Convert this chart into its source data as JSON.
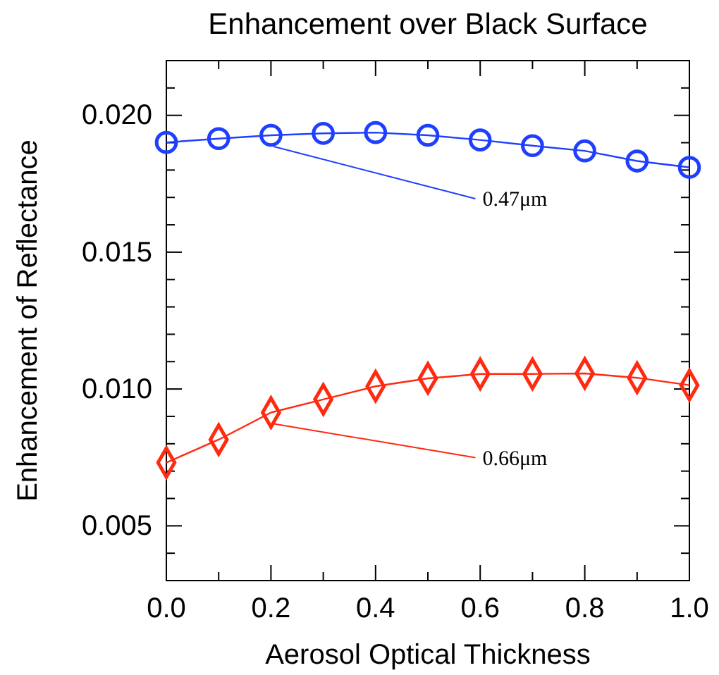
{
  "chart_data": {
    "type": "line",
    "title": "Enhancement over Black Surface",
    "xlabel": "Aerosol Optical Thickness",
    "ylabel": "Enhancement of Reflectance",
    "x": [
      0.0,
      0.1,
      0.2,
      0.3,
      0.4,
      0.5,
      0.6,
      0.7,
      0.8,
      0.9,
      1.0
    ],
    "series": [
      {
        "name": "0.47μm",
        "color": "#1f3fff",
        "marker": "circle",
        "values": [
          0.01901,
          0.01915,
          0.01927,
          0.01934,
          0.01937,
          0.01927,
          0.0191,
          0.01889,
          0.0187,
          0.01833,
          0.0181
        ]
      },
      {
        "name": "0.66μm",
        "color": "#ff2a10",
        "marker": "diamond",
        "values": [
          0.00731,
          0.00815,
          0.00914,
          0.00962,
          0.0101,
          0.01039,
          0.01055,
          0.01055,
          0.01057,
          0.01041,
          0.01014
        ]
      }
    ],
    "xlim": [
      0.0,
      1.0
    ],
    "xticks": [
      {
        "value": 0.0,
        "label": "0.0"
      },
      {
        "value": 0.1,
        "label": null
      },
      {
        "value": 0.2,
        "label": "0.2"
      },
      {
        "value": 0.3,
        "label": null
      },
      {
        "value": 0.4,
        "label": "0.4"
      },
      {
        "value": 0.5,
        "label": null
      },
      {
        "value": 0.6,
        "label": "0.6"
      },
      {
        "value": 0.7,
        "label": null
      },
      {
        "value": 0.8,
        "label": "0.8"
      },
      {
        "value": 0.9,
        "label": null
      },
      {
        "value": 1.0,
        "label": "1.0"
      }
    ],
    "ylim": [
      0.003,
      0.022
    ],
    "yticks": [
      {
        "value": 0.003,
        "label": null
      },
      {
        "value": 0.004,
        "label": null
      },
      0.005,
      {
        "value": 0.006,
        "label": null
      },
      {
        "value": 0.007,
        "label": null
      },
      {
        "value": 0.008,
        "label": null
      },
      {
        "value": 0.009,
        "label": null
      },
      {
        "value": 0.01,
        "label": "0.010"
      },
      {
        "value": 0.011,
        "label": null
      },
      {
        "value": 0.012,
        "label": null
      },
      {
        "value": 0.013,
        "label": null
      },
      {
        "value": 0.014,
        "label": null
      },
      0.015,
      {
        "value": 0.016,
        "label": null
      },
      {
        "value": 0.017,
        "label": null
      },
      {
        "value": 0.018,
        "label": null
      },
      {
        "value": 0.019,
        "label": null
      },
      {
        "value": 0.02,
        "label": "0.020"
      },
      {
        "value": 0.021,
        "label": null
      },
      {
        "value": 0.022,
        "label": null
      }
    ],
    "grid": false,
    "legend": false,
    "line_style": "solid"
  }
}
